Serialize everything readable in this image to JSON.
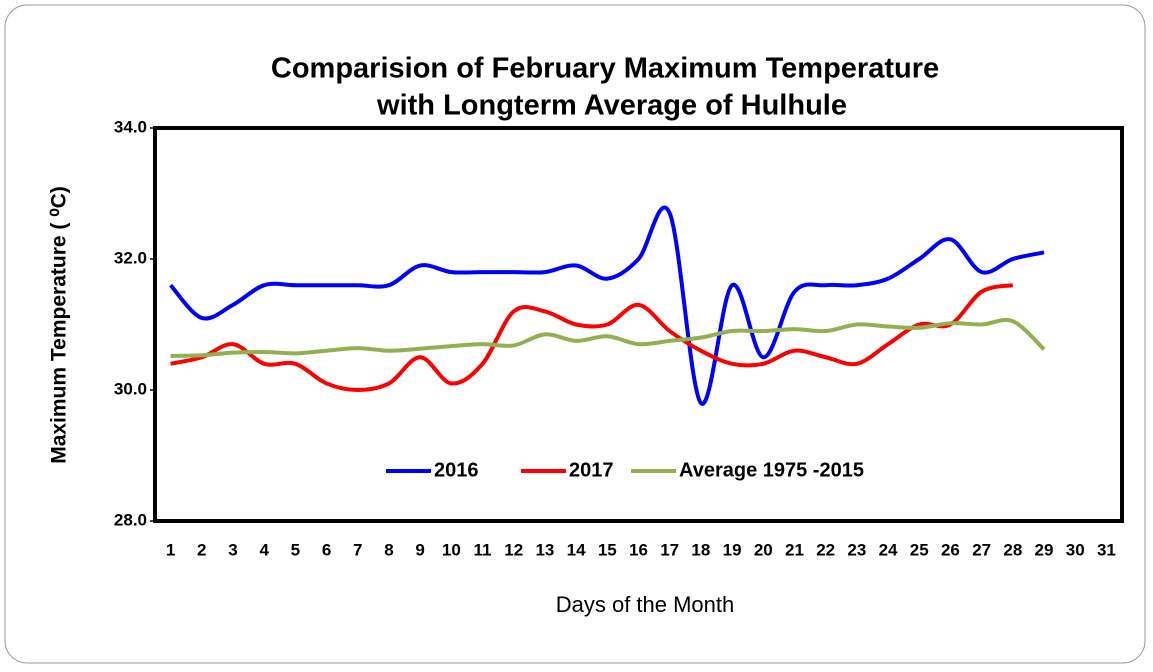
{
  "chart_data": {
    "type": "line",
    "title": [
      "Comparision of February Maximum Temperature",
      "with Longterm Average of Hulhule"
    ],
    "x_label": "Days of the Month",
    "y_label": "Maximum Temperature ( ⁰C)",
    "categories": [
      "1",
      "2",
      "3",
      "4",
      "5",
      "6",
      "7",
      "8",
      "9",
      "10",
      "11",
      "12",
      "13",
      "14",
      "15",
      "16",
      "17",
      "18",
      "19",
      "20",
      "21",
      "22",
      "23",
      "24",
      "25",
      "26",
      "27",
      "28",
      "29",
      "30",
      "31"
    ],
    "series": [
      {
        "name": "2016",
        "color": "#0000ff",
        "values": [
          31.6,
          31.1,
          31.3,
          31.6,
          31.6,
          31.6,
          31.6,
          31.6,
          31.9,
          31.8,
          31.8,
          31.8,
          31.8,
          31.9,
          31.7,
          32.0,
          32.7,
          29.8,
          31.6,
          30.5,
          31.5,
          31.6,
          31.6,
          31.7,
          32.0,
          32.3,
          31.8,
          32.0,
          32.1,
          null,
          null
        ]
      },
      {
        "name": "2017",
        "color": "#ff0000",
        "values": [
          30.4,
          30.5,
          30.7,
          30.4,
          30.4,
          30.1,
          30.0,
          30.1,
          30.5,
          30.1,
          30.4,
          31.2,
          31.2,
          31.0,
          31.0,
          31.3,
          30.9,
          30.6,
          30.4,
          30.4,
          30.6,
          30.5,
          30.4,
          30.7,
          31.0,
          31.0,
          31.5,
          31.6,
          null,
          null,
          null
        ]
      },
      {
        "name": "Average 1975 -2015",
        "color": "#92b050",
        "values": [
          30.52,
          30.53,
          30.57,
          30.58,
          30.56,
          30.6,
          30.64,
          30.6,
          30.63,
          30.67,
          30.7,
          30.68,
          30.85,
          30.75,
          30.82,
          30.7,
          30.75,
          30.8,
          30.9,
          30.9,
          30.93,
          30.9,
          31.0,
          30.97,
          30.95,
          31.02,
          31.0,
          31.05,
          30.62,
          null,
          null
        ]
      }
    ],
    "ylim": [
      28,
      34
    ],
    "yticks": [
      {
        "value": 28,
        "label": "28.0"
      },
      {
        "value": 30,
        "label": "30.0"
      },
      {
        "value": 32,
        "label": "32.0"
      },
      {
        "value": 34,
        "label": "34.0"
      }
    ],
    "legend": "lower center",
    "grid": false
  }
}
